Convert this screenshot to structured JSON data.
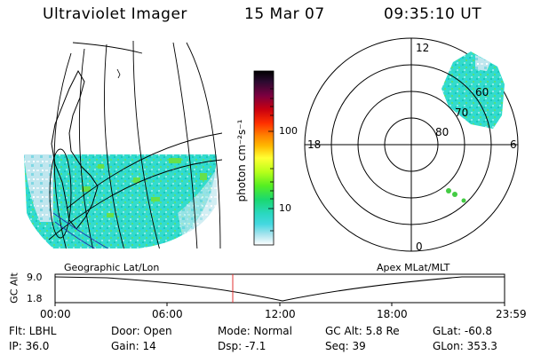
{
  "header": {
    "instrument": "Ultraviolet Imager",
    "date": "15 Mar 07",
    "time": "09:35:10 UT"
  },
  "panels": {
    "geo_label": "Geographic Lat/Lon",
    "apex_label": "Apex  MLat/MLT"
  },
  "colorbar": {
    "unit_label": "photon cm⁻²s⁻¹",
    "ticks": [
      "100",
      "10"
    ],
    "colors": [
      "#000000",
      "#2a0a2f",
      "#7a0040",
      "#c80010",
      "#ff2a00",
      "#ff7a00",
      "#ffb300",
      "#ffd200",
      "#ffff33",
      "#c8ff1a",
      "#66f21a",
      "#1ae04b",
      "#2ad8b0",
      "#33d8dc",
      "#8fe0e8",
      "#d8e8f2",
      "#ffffff"
    ]
  },
  "polar": {
    "mlt_labels": {
      "top": "12",
      "left": "18",
      "right": "6",
      "bottom": "0"
    },
    "lat_labels": [
      "60",
      "70",
      "80"
    ]
  },
  "altitude_plot": {
    "ylabel": "GC Alt",
    "yticks": [
      "9.0",
      "1.8"
    ],
    "xticks": [
      "00:00",
      "06:00",
      "12:00",
      "18:00",
      "23:59"
    ]
  },
  "status": {
    "filter": "Flt: LBHL",
    "ip": "IP: 36.0",
    "door": "Door: Open",
    "gain": "Gain: 14",
    "mode": "Mode: Normal",
    "dsp": "Dsp:    -7.1",
    "gc_alt": "GC Alt: 5.8 Re",
    "seq": "Seq: 39",
    "glat": "GLat:  -60.8",
    "glon": "GLon: 353.3"
  },
  "colors": {
    "marker": "#e03030",
    "aurora_cyan": "#33dcd0",
    "aurora_green": "#66e04a",
    "pale": "#d8eef4",
    "blue_track": "#2233aa"
  }
}
